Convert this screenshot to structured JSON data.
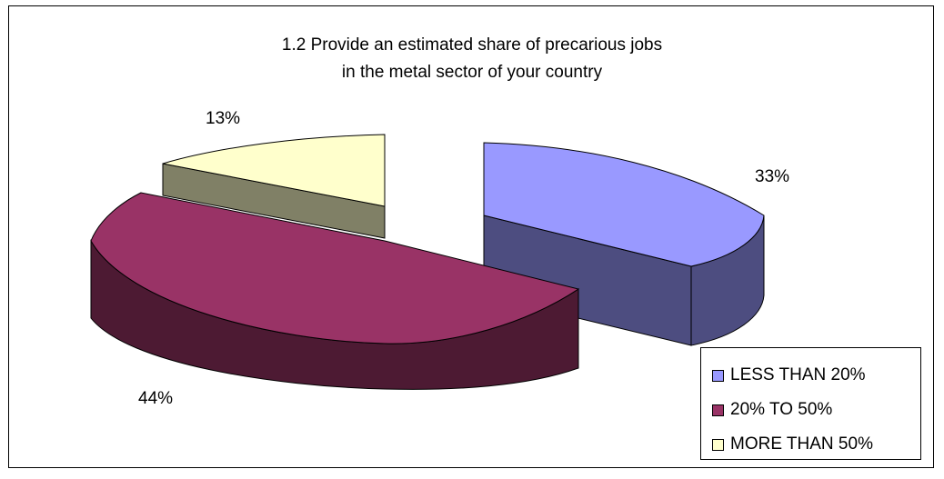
{
  "chart_data": {
    "type": "pie",
    "title": "1.2 Provide an estimated share of precarious jobs in the metal sector of your country",
    "title_lines": [
      "1.2 Provide an estimated share of precarious jobs",
      "in the metal sector of your country"
    ],
    "three_d": true,
    "legend_position": "bottom-right",
    "slices": [
      {
        "name": "LESS THAN 20%",
        "value": 33,
        "label": "33%",
        "color": "#9999FF",
        "side_color": "#4D4D80"
      },
      {
        "name": "20% TO 50%",
        "value": 44,
        "label": "44%",
        "color": "#993366",
        "side_color": "#4D1A33"
      },
      {
        "name": "MORE THAN 50%",
        "value": 13,
        "label": "13%",
        "color": "#FFFFCC",
        "side_color": "#808066"
      }
    ]
  }
}
